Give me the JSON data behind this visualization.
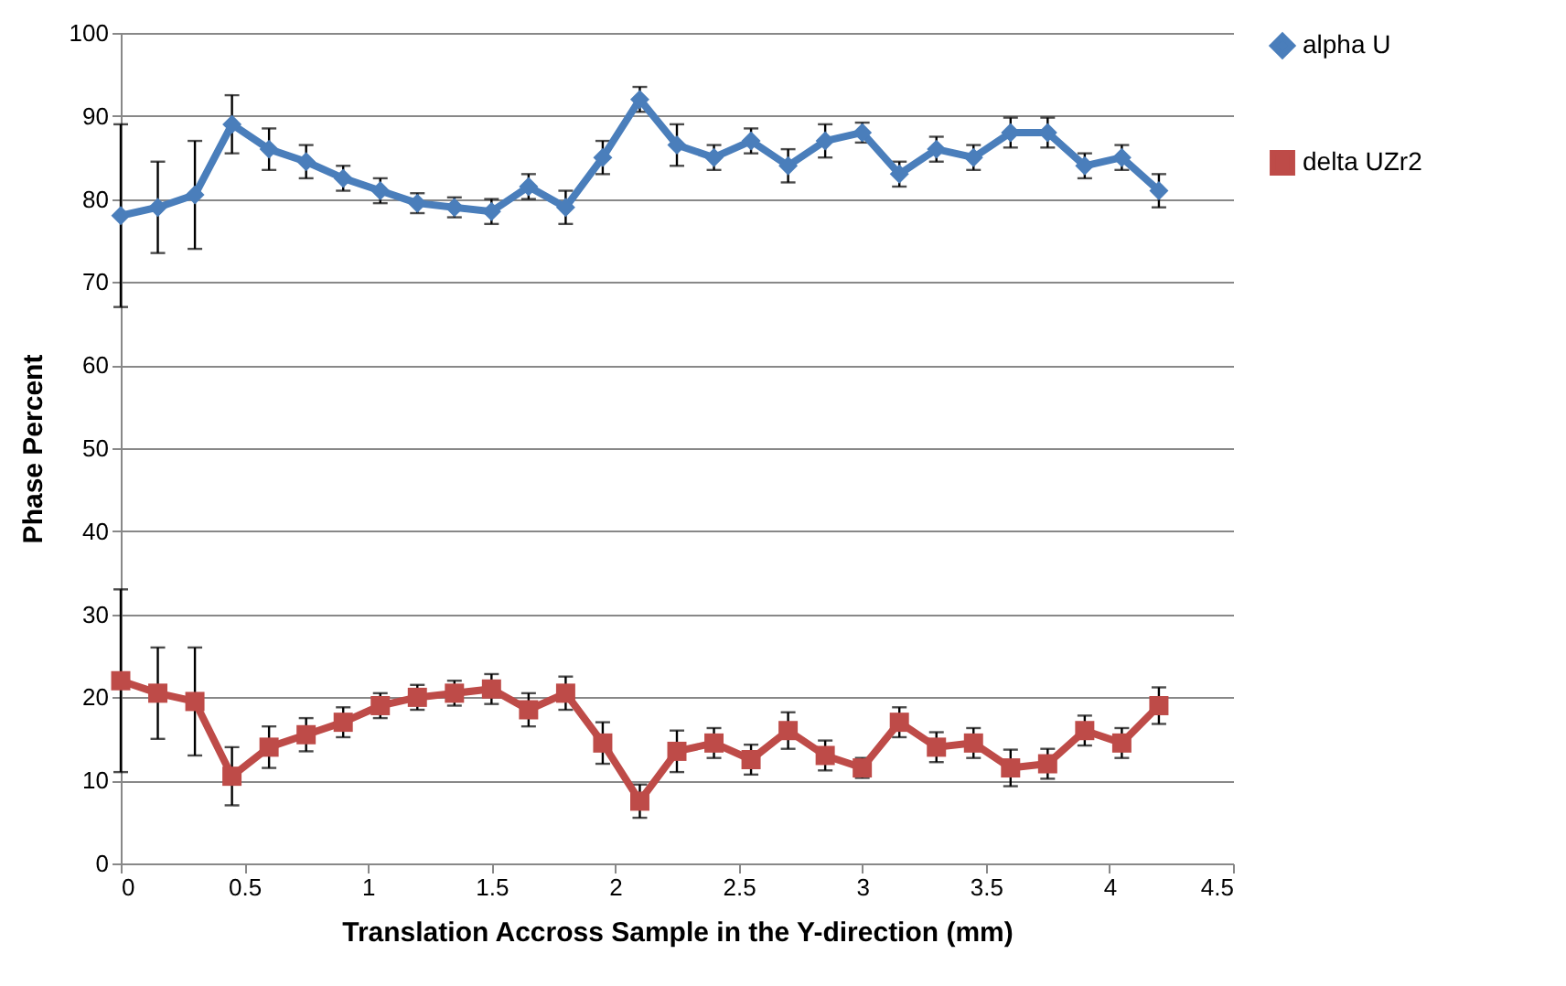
{
  "chart_data": {
    "type": "line",
    "xlabel": "Translation Accross Sample in the Y-direction (mm)",
    "ylabel": "Phase Percent",
    "x": [
      0,
      0.15,
      0.3,
      0.45,
      0.6,
      0.75,
      0.9,
      1.05,
      1.2,
      1.35,
      1.5,
      1.65,
      1.8,
      1.95,
      2.1,
      2.25,
      2.4,
      2.55,
      2.7,
      2.85,
      3,
      3.15,
      3.3,
      3.45,
      3.6,
      3.75,
      3.9,
      4.05,
      4.2
    ],
    "series": [
      {
        "name": "alpha U",
        "color": "#4a7ebb",
        "marker": "diamond",
        "values": [
          78,
          79,
          80.5,
          89,
          86,
          84.5,
          82.5,
          81,
          79.5,
          79,
          78.5,
          81.5,
          79,
          85,
          92,
          86.5,
          85,
          87,
          84,
          87,
          88,
          83,
          86,
          85,
          88,
          88,
          84,
          85,
          81
        ],
        "errors": [
          11,
          5.5,
          6.5,
          3.5,
          2.5,
          2,
          1.5,
          1.5,
          1.2,
          1.2,
          1.5,
          1.5,
          2,
          2,
          1.5,
          2.5,
          1.5,
          1.5,
          2,
          2,
          1.2,
          1.5,
          1.5,
          1.5,
          1.8,
          1.8,
          1.5,
          1.5,
          2
        ]
      },
      {
        "name": "delta UZr2",
        "color": "#be4b48",
        "marker": "square",
        "values": [
          22,
          20.5,
          19.5,
          10.5,
          14,
          15.5,
          17,
          19,
          20,
          20.5,
          21,
          18.5,
          20.5,
          14.5,
          7.5,
          13.5,
          14.5,
          12.5,
          16,
          13,
          11.5,
          17,
          14,
          14.5,
          11.5,
          12,
          16,
          14.5,
          19
        ],
        "errors": [
          11,
          5.5,
          6.5,
          3.5,
          2.5,
          2,
          1.8,
          1.5,
          1.5,
          1.5,
          1.8,
          2,
          2,
          2.5,
          2,
          2.5,
          1.8,
          1.8,
          2.2,
          1.8,
          1.2,
          1.8,
          1.8,
          1.8,
          2.2,
          1.8,
          1.8,
          1.8,
          2.2
        ]
      }
    ],
    "xlim": [
      0,
      4.5
    ],
    "xticks": [
      0,
      0.5,
      1,
      1.5,
      2,
      2.5,
      3,
      3.5,
      4,
      4.5
    ],
    "ylim": [
      0,
      100
    ],
    "yticks": [
      0,
      10,
      20,
      30,
      40,
      50,
      60,
      70,
      80,
      90,
      100
    ],
    "grid": "y",
    "legend": "right"
  }
}
